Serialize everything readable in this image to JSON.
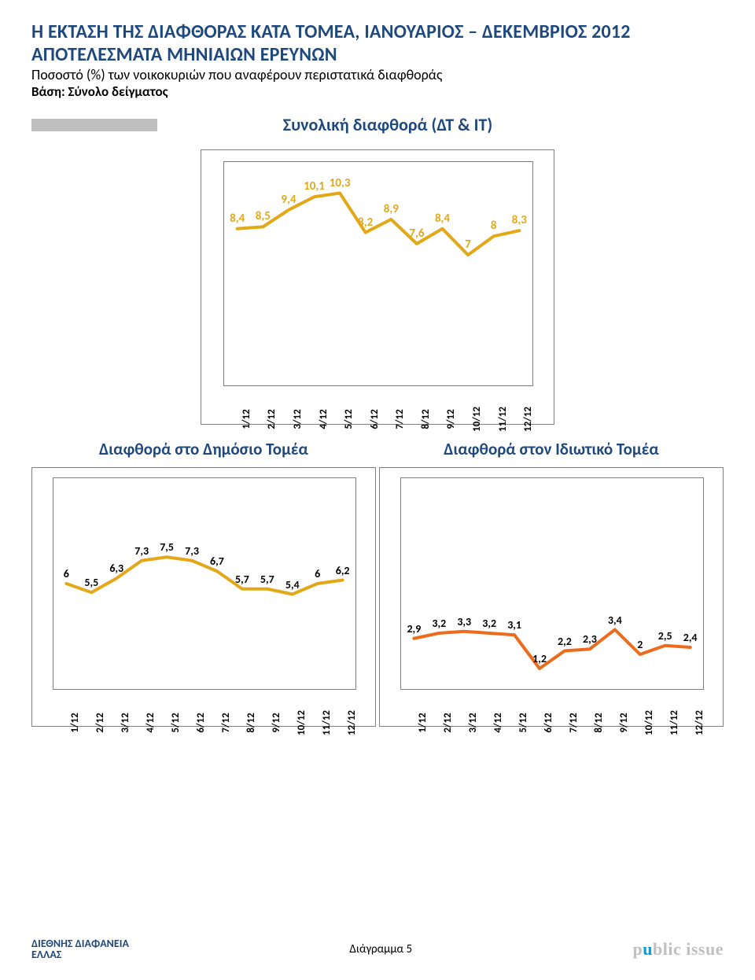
{
  "header": {
    "line1": "Η ΕΚΤΑΣΗ ΤΗΣ ΔΙΑΦΘΟΡΑΣ ΚΑΤΑ ΤΟΜΕΑ, ΙΑΝΟΥΑΡΙΟΣ – ΔΕΚΕΜΒΡΙΟΣ 2012",
    "line2": "ΑΠΟΤΕΛΕΣΜΑΤΑ ΜΗΝΙΑΙΩΝ ΕΡΕΥΝΩΝ",
    "line3": "Ποσοστό (%) των νοικοκυριών που αναφέρουν περιστατικά διαφθοράς",
    "line4": "Βάση: Σύνολο δείγματος"
  },
  "months": [
    "1/12",
    "2/12",
    "3/12",
    "4/12",
    "5/12",
    "6/12",
    "7/12",
    "8/12",
    "9/12",
    "10/12",
    "11/12",
    "12/12"
  ],
  "chart_top": {
    "title": "Συνολική διαφθορά (ΔΤ & ΙΤ)",
    "values": [
      8.4,
      8.5,
      9.4,
      10.1,
      10.3,
      8.2,
      8.9,
      7.6,
      8.4,
      7,
      8,
      8.3
    ],
    "labels": [
      "8,4",
      "8,5",
      "9,4",
      "10,1",
      "10,3",
      "8,2",
      "8,9",
      "7,6",
      "8,4",
      "7",
      "8",
      "8,3"
    ],
    "ymin": 0,
    "ymax": 12,
    "color": "#e3a817",
    "label_color": "#e3a817",
    "line_width": 4,
    "label_fontsize": 15,
    "label_fontweight": 700
  },
  "chart_left": {
    "title": "Διαφθορά στο Δημόσιο Τομέα",
    "values": [
      6,
      5.5,
      6.3,
      7.3,
      7.5,
      7.3,
      6.7,
      5.7,
      5.7,
      5.4,
      6,
      6.2
    ],
    "labels": [
      "6",
      "5,5",
      "6,3",
      "7,3",
      "7,5",
      "7,3",
      "6,7",
      "5,7",
      "5,7",
      "5,4",
      "6",
      "6,2"
    ],
    "ymin": 0,
    "ymax": 12,
    "color": "#e3a817",
    "label_color": "#000000",
    "line_width": 4,
    "label_fontsize": 14,
    "label_fontweight": 700
  },
  "chart_right": {
    "title": "Διαφθορά στον Ιδιωτικό Τομέα",
    "values": [
      2.9,
      3.2,
      3.3,
      3.2,
      3.1,
      1.2,
      2.2,
      2.3,
      3.4,
      2,
      2.5,
      2.4
    ],
    "labels": [
      "2,9",
      "3,2",
      "3,3",
      "3,2",
      "3,1",
      "1,2",
      "2,2",
      "2,3",
      "3,4",
      "2",
      "2,5",
      "2,4"
    ],
    "ymin": 0,
    "ymax": 12,
    "color": "#ed6b1c",
    "label_color": "#000000",
    "line_width": 4,
    "label_fontsize": 14,
    "label_fontweight": 700
  },
  "footer": {
    "caption": "Διάγραμμα 5",
    "logo_left_line1": "ΔΙΕΘΝΗΣ ΔΙΑΦΑΝΕΙΑ",
    "logo_left_line2": "ΕΛΛΑΣ",
    "logo_right": "public issue"
  }
}
